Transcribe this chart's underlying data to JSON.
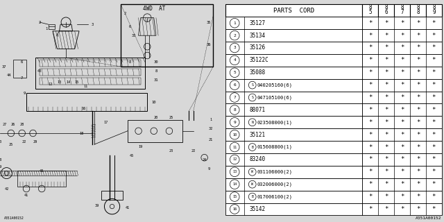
{
  "background_color": "#d8d8d8",
  "diagram_bg": "#d8d8d8",
  "line_color": "#000000",
  "diagram_code": "A351A00152",
  "col_header": "PARTS CORD",
  "year_cols": [
    "85",
    "86",
    "87",
    "88",
    "89"
  ],
  "rows": [
    {
      "num": "1",
      "prefix": "",
      "code": "35127"
    },
    {
      "num": "2",
      "prefix": "",
      "code": "35134"
    },
    {
      "num": "3",
      "prefix": "",
      "code": "35126"
    },
    {
      "num": "4",
      "prefix": "",
      "code": "35122C"
    },
    {
      "num": "5",
      "prefix": "",
      "code": "35088"
    },
    {
      "num": "6",
      "prefix": "S",
      "code": "040205160(6)"
    },
    {
      "num": "7",
      "prefix": "S",
      "code": "047105100(6)"
    },
    {
      "num": "8",
      "prefix": "",
      "code": "88071"
    },
    {
      "num": "9",
      "prefix": "N",
      "code": "023508000(1)"
    },
    {
      "num": "10",
      "prefix": "",
      "code": "35121"
    },
    {
      "num": "11",
      "prefix": "B",
      "code": "015608800(1)"
    },
    {
      "num": "12",
      "prefix": "",
      "code": "83240"
    },
    {
      "num": "13",
      "prefix": "W",
      "code": "031106000(2)"
    },
    {
      "num": "14",
      "prefix": "W",
      "code": "032006000(2)"
    },
    {
      "num": "15",
      "prefix": "B",
      "code": "017006100(2)"
    },
    {
      "num": "16",
      "prefix": "",
      "code": "35142"
    }
  ]
}
